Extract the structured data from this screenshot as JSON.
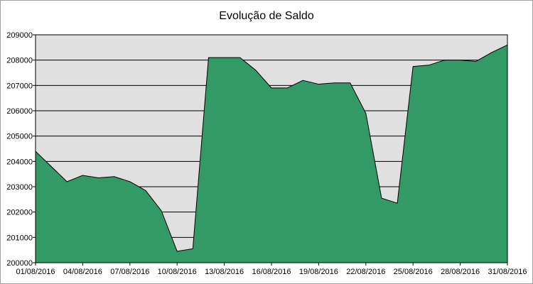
{
  "chart_data": {
    "type": "area",
    "title": "Evolução de Saldo",
    "xlabel": "",
    "ylabel": "",
    "ylim": [
      200000,
      209000
    ],
    "y_ticks": [
      200000,
      201000,
      202000,
      203000,
      204000,
      205000,
      206000,
      207000,
      208000,
      209000
    ],
    "y_tick_labels": [
      "200000",
      "201000",
      "202000",
      "203000",
      "204000",
      "205000",
      "206000",
      "207000",
      "208000",
      "209000"
    ],
    "x_tick_labels": [
      "01/08/2016",
      "04/08/2016",
      "07/08/2016",
      "10/08/2016",
      "13/08/2016",
      "16/08/2016",
      "19/08/2016",
      "22/08/2016",
      "25/08/2016",
      "28/08/2016",
      "31/08/2016"
    ],
    "grid": true,
    "legend": "none",
    "colors": {
      "fill": "#339966",
      "plot_bg": "#e0e0e0",
      "gridline": "#000000"
    },
    "series": [
      {
        "x": [
          "01/08/2016",
          "02/08/2016",
          "03/08/2016",
          "04/08/2016",
          "05/08/2016",
          "06/08/2016",
          "07/08/2016",
          "08/08/2016",
          "09/08/2016",
          "10/08/2016",
          "11/08/2016",
          "12/08/2016",
          "13/08/2016",
          "14/08/2016",
          "15/08/2016",
          "16/08/2016",
          "17/08/2016",
          "18/08/2016",
          "19/08/2016",
          "20/08/2016",
          "21/08/2016",
          "22/08/2016",
          "23/08/2016",
          "24/08/2016",
          "25/08/2016",
          "26/08/2016",
          "27/08/2016",
          "28/08/2016",
          "29/08/2016",
          "30/08/2016",
          "31/08/2016"
        ],
        "values": [
          204400,
          203800,
          203200,
          203450,
          203350,
          203400,
          203200,
          202850,
          202050,
          200450,
          200550,
          208100,
          208100,
          208100,
          207600,
          206900,
          206900,
          207200,
          207050,
          207100,
          207100,
          205900,
          202550,
          202350,
          207750,
          207800,
          208000,
          208000,
          207950,
          208300,
          208600
        ]
      }
    ]
  }
}
